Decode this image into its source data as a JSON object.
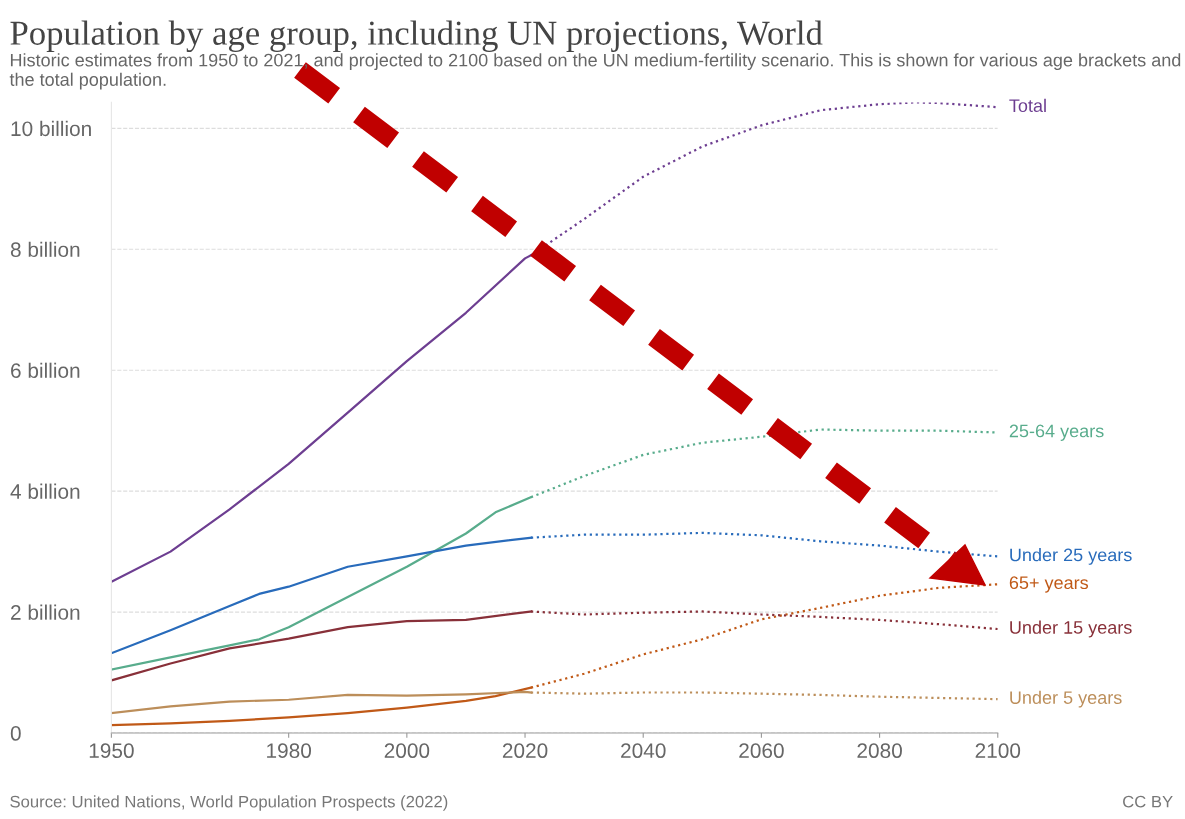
{
  "chart_data": {
    "type": "line",
    "title": "Population by age group, including UN projections, World",
    "subtitle": "Historic estimates from 1950 to 2021, and projected to 2100 based on the UN medium-fertility scenario. This is shown for various age brackets and the total population.",
    "xlim": [
      1950,
      2100
    ],
    "ylim": [
      0,
      10.43
    ],
    "xticks": [
      1950,
      1980,
      2000,
      2020,
      2040,
      2060,
      2080,
      2100
    ],
    "yticks": [
      0,
      {
        "value": 2,
        "label": "2 billion"
      },
      {
        "value": 4,
        "label": "4 billion"
      },
      {
        "value": 6,
        "label": "6 billion"
      },
      {
        "value": 8,
        "label": "8 billion"
      },
      {
        "value": 10,
        "label": "10 billion"
      }
    ],
    "grid": "y",
    "legend": false,
    "series": [
      {
        "color": "#6d3e91",
        "line_style": "solid",
        "x": [
          1950,
          1960,
          1970,
          1980,
          1990,
          2000,
          2010,
          2020,
          2021
        ],
        "values": [
          2.5,
          3.0,
          3.7,
          4.45,
          5.3,
          6.15,
          6.95,
          7.85,
          7.9
        ]
      },
      {
        "name": "Total",
        "color": "#6d3e91",
        "line_style": "dotted",
        "x": [
          2021,
          2030,
          2040,
          2050,
          2060,
          2070,
          2080,
          2086,
          2090,
          2100
        ],
        "values": [
          7.9,
          8.5,
          9.2,
          9.7,
          10.05,
          10.3,
          10.4,
          10.43,
          10.42,
          10.35
        ]
      },
      {
        "color": "#58ac8c",
        "line_style": "solid",
        "x": [
          1950,
          1960,
          1970,
          1975,
          1980,
          1990,
          2000,
          2010,
          2015,
          2021
        ],
        "values": [
          1.05,
          1.25,
          1.45,
          1.55,
          1.75,
          2.25,
          2.75,
          3.3,
          3.65,
          3.9
        ]
      },
      {
        "name": "25-64 years",
        "color": "#58ac8c",
        "line_style": "dotted",
        "x": [
          2021,
          2030,
          2040,
          2050,
          2060,
          2070,
          2080,
          2090,
          2100
        ],
        "values": [
          3.9,
          4.25,
          4.6,
          4.8,
          4.9,
          5.02,
          5.0,
          5.0,
          4.97
        ]
      },
      {
        "color": "#286bbb",
        "line_style": "solid",
        "x": [
          1950,
          1960,
          1970,
          1975,
          1980,
          1990,
          2000,
          2010,
          2021
        ],
        "values": [
          1.32,
          1.7,
          2.1,
          2.3,
          2.42,
          2.75,
          2.92,
          3.1,
          3.23
        ]
      },
      {
        "name": "Under 25 years",
        "color": "#286bbb",
        "line_style": "dotted",
        "x": [
          2021,
          2030,
          2040,
          2050,
          2060,
          2070,
          2080,
          2090,
          2100
        ],
        "values": [
          3.23,
          3.28,
          3.28,
          3.31,
          3.27,
          3.17,
          3.1,
          3.0,
          2.92
        ]
      },
      {
        "color": "#c05917",
        "line_style": "solid",
        "x": [
          1950,
          1960,
          1970,
          1980,
          1990,
          2000,
          2010,
          2015,
          2021
        ],
        "values": [
          0.13,
          0.16,
          0.2,
          0.26,
          0.33,
          0.42,
          0.53,
          0.61,
          0.75
        ]
      },
      {
        "name": "65+ years",
        "color": "#c05917",
        "line_style": "dotted",
        "x": [
          2021,
          2030,
          2040,
          2050,
          2060,
          2070,
          2080,
          2090,
          2100
        ],
        "values": [
          0.75,
          0.98,
          1.3,
          1.55,
          1.88,
          2.07,
          2.27,
          2.4,
          2.46
        ]
      },
      {
        "color": "#883039",
        "line_style": "solid",
        "x": [
          1950,
          1960,
          1970,
          1980,
          1990,
          2000,
          2010,
          2021
        ],
        "values": [
          0.87,
          1.15,
          1.4,
          1.56,
          1.75,
          1.85,
          1.87,
          2.01
        ]
      },
      {
        "name": "Under 15 years",
        "color": "#883039",
        "line_style": "dotted",
        "x": [
          2021,
          2030,
          2040,
          2050,
          2060,
          2070,
          2080,
          2090,
          2100
        ],
        "values": [
          2.01,
          1.96,
          1.99,
          2.01,
          1.96,
          1.92,
          1.87,
          1.8,
          1.72
        ]
      },
      {
        "color": "#bc8e5a",
        "line_style": "solid",
        "x": [
          1950,
          1960,
          1970,
          1980,
          1990,
          2000,
          2010,
          2020,
          2021
        ],
        "values": [
          0.33,
          0.44,
          0.52,
          0.55,
          0.63,
          0.62,
          0.64,
          0.68,
          0.67
        ]
      },
      {
        "name": "Under 5 years",
        "color": "#bc8e5a",
        "line_style": "dotted",
        "x": [
          2021,
          2030,
          2040,
          2050,
          2060,
          2070,
          2080,
          2090,
          2100
        ],
        "values": [
          0.67,
          0.65,
          0.67,
          0.67,
          0.65,
          0.63,
          0.6,
          0.58,
          0.56
        ]
      }
    ],
    "annotations": [
      "Source: United Nations, World Population Prospects (2022)",
      "CC BY"
    ]
  }
}
